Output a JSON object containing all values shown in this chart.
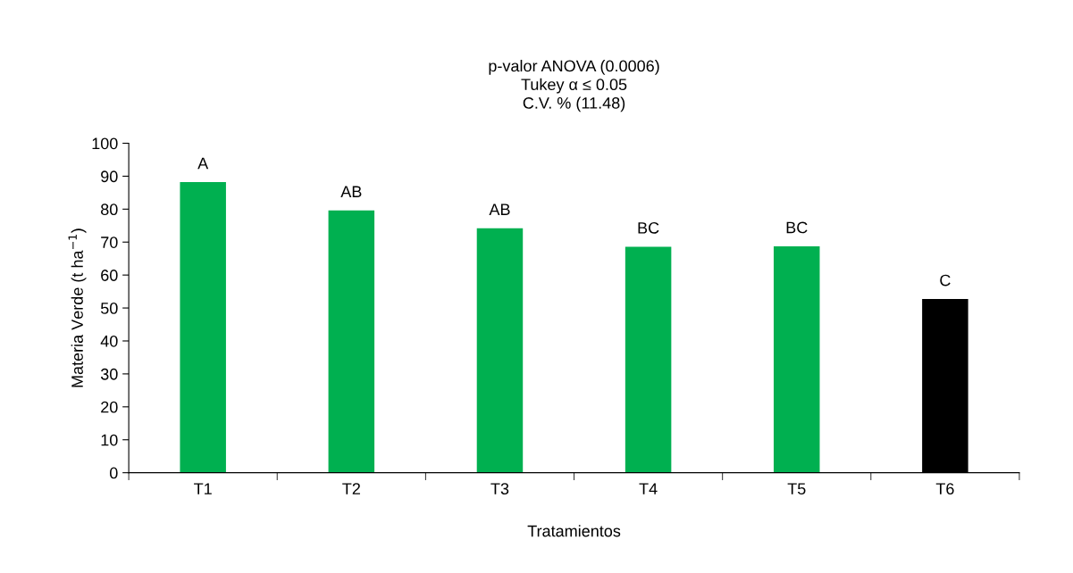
{
  "chart_data": {
    "type": "bar",
    "title": "p-valor ANOVA (0.0006)\nTukey α ≤ 0.05\nC.V. % (11.48)",
    "xlabel": "Tratamientos",
    "ylabel": "Materia Verde (t ha$^{−1}$)",
    "categories": [
      "T1",
      "T2",
      "T3",
      "T4",
      "T5",
      "T6"
    ],
    "values": [
      88.2,
      79.6,
      74.2,
      68.6,
      68.7,
      52.7
    ],
    "colors": [
      "#00b050",
      "#00b050",
      "#00b050",
      "#00b050",
      "#00b050",
      "#000000"
    ],
    "ylim": [
      0,
      100
    ],
    "yticks": [
      0,
      10,
      20,
      30,
      40,
      50,
      60,
      70,
      80,
      90,
      100
    ],
    "grid": false,
    "annotations": [
      {
        "text": "A",
        "x": "T1",
        "y": 88.2
      },
      {
        "text": "AB",
        "x": "T2",
        "y": 79.6
      },
      {
        "text": "AB",
        "x": "T3",
        "y": 74.2
      },
      {
        "text": "BC",
        "x": "T4",
        "y": 68.6
      },
      {
        "text": "BC",
        "x": "T5",
        "y": 68.7
      },
      {
        "text": "C",
        "x": "T6",
        "y": 52.7
      }
    ]
  }
}
